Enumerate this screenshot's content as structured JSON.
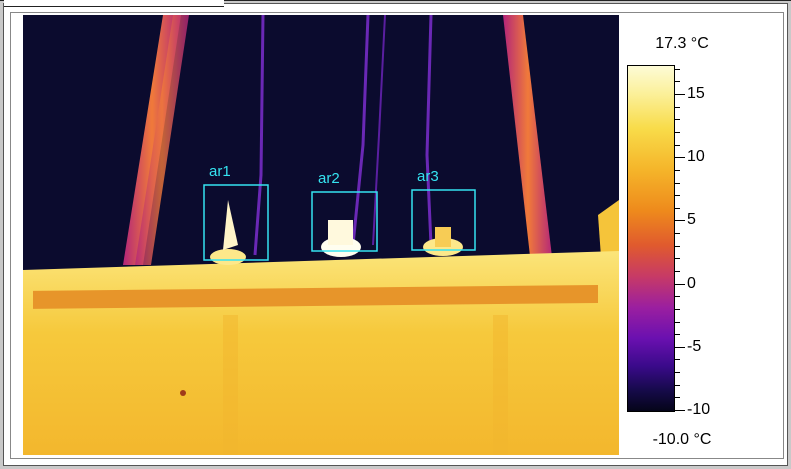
{
  "thermal_view": {
    "rois": [
      {
        "label": "ar1"
      },
      {
        "label": "ar2"
      },
      {
        "label": "ar3"
      }
    ],
    "roi_color": "#35e3f0"
  },
  "color_scale": {
    "max_label": "17.3 °C",
    "min_label": "-10.0 °C",
    "tick_labels": [
      "15",
      "10",
      "5",
      "0",
      "-5",
      "-10"
    ],
    "max_value": 17.3,
    "min_value": -10.0,
    "palette": "iron"
  }
}
